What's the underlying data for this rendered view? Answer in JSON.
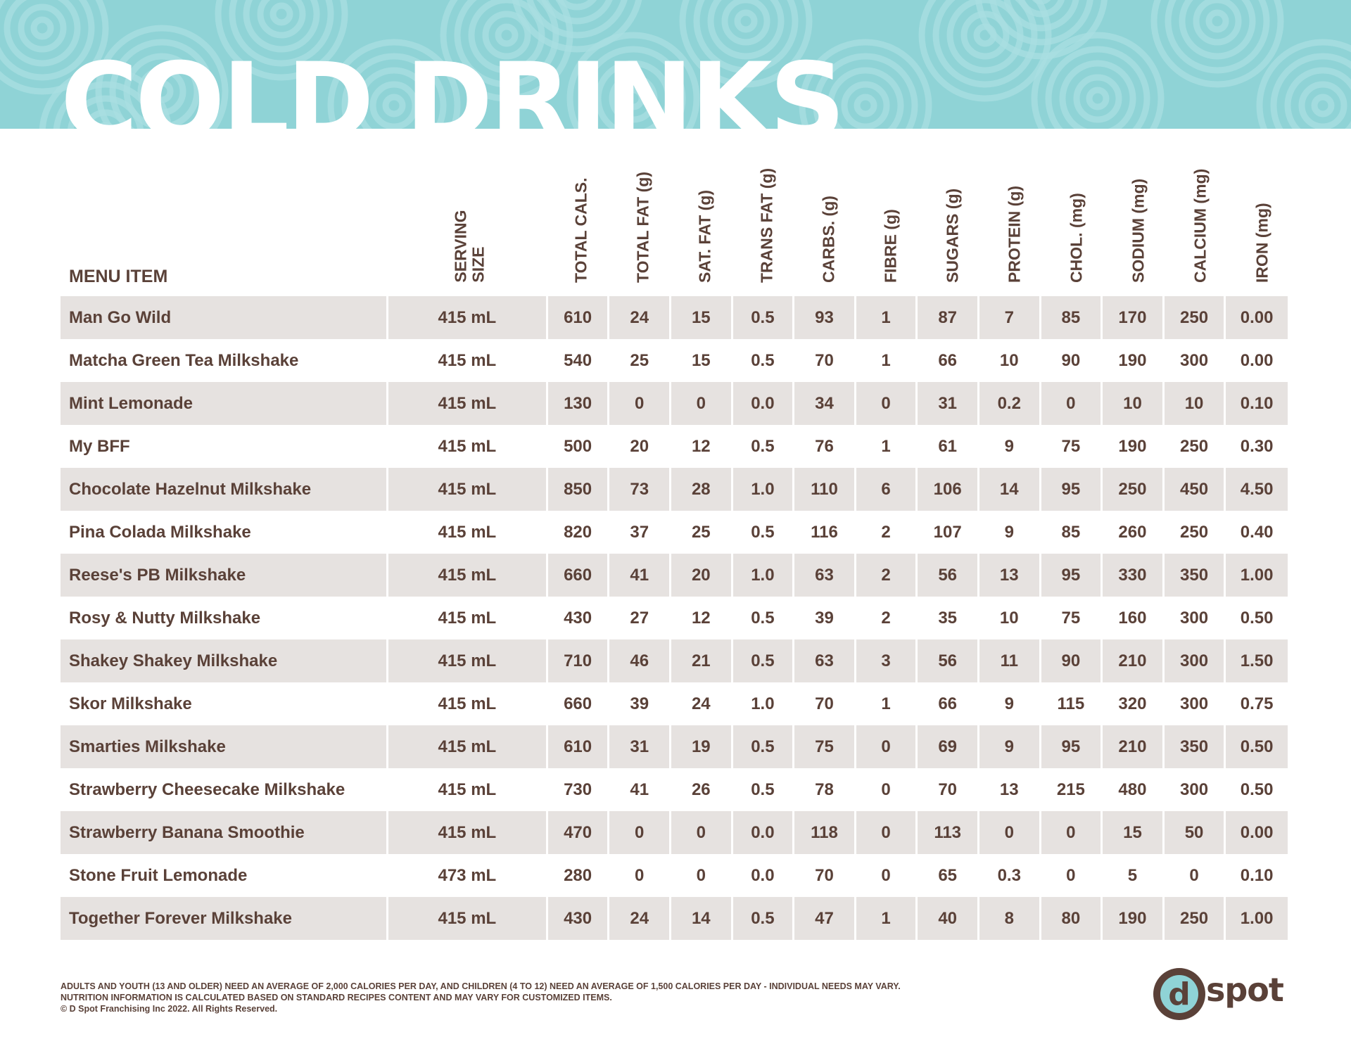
{
  "page": {
    "title": "COLD DRINKS"
  },
  "table": {
    "menu_header": "MENU ITEM",
    "headers": [
      "SERVING\nSIZE",
      "TOTAL CALS.",
      "TOTAL FAT (g)",
      "SAT. FAT (g)",
      "TRANS FAT (g)",
      "CARBS. (g)",
      "FIBRE (g)",
      "SUGARS (g)",
      "PROTEIN (g)",
      "CHOL. (mg)",
      "SODIUM (mg)",
      "CALCIUM (mg)",
      "IRON (mg)"
    ],
    "rows": [
      [
        "Man Go Wild",
        "415 mL",
        "610",
        "24",
        "15",
        "0.5",
        "93",
        "1",
        "87",
        "7",
        "85",
        "170",
        "250",
        "0.00"
      ],
      [
        "Matcha Green Tea Milkshake",
        "415 mL",
        "540",
        "25",
        "15",
        "0.5",
        "70",
        "1",
        "66",
        "10",
        "90",
        "190",
        "300",
        "0.00"
      ],
      [
        "Mint Lemonade",
        "415 mL",
        "130",
        "0",
        "0",
        "0.0",
        "34",
        "0",
        "31",
        "0.2",
        "0",
        "10",
        "10",
        "0.10"
      ],
      [
        "My BFF",
        "415 mL",
        "500",
        "20",
        "12",
        "0.5",
        "76",
        "1",
        "61",
        "9",
        "75",
        "190",
        "250",
        "0.30"
      ],
      [
        "Chocolate Hazelnut Milkshake",
        "415 mL",
        "850",
        "73",
        "28",
        "1.0",
        "110",
        "6",
        "106",
        "14",
        "95",
        "250",
        "450",
        "4.50"
      ],
      [
        "Pina Colada Milkshake",
        "415 mL",
        "820",
        "37",
        "25",
        "0.5",
        "116",
        "2",
        "107",
        "9",
        "85",
        "260",
        "250",
        "0.40"
      ],
      [
        "Reese's PB Milkshake",
        "415 mL",
        "660",
        "41",
        "20",
        "1.0",
        "63",
        "2",
        "56",
        "13",
        "95",
        "330",
        "350",
        "1.00"
      ],
      [
        "Rosy & Nutty Milkshake",
        "415 mL",
        "430",
        "27",
        "12",
        "0.5",
        "39",
        "2",
        "35",
        "10",
        "75",
        "160",
        "300",
        "0.50"
      ],
      [
        "Shakey Shakey Milkshake",
        "415 mL",
        "710",
        "46",
        "21",
        "0.5",
        "63",
        "3",
        "56",
        "11",
        "90",
        "210",
        "300",
        "1.50"
      ],
      [
        "Skor Milkshake",
        "415 mL",
        "660",
        "39",
        "24",
        "1.0",
        "70",
        "1",
        "66",
        "9",
        "115",
        "320",
        "300",
        "0.75"
      ],
      [
        "Smarties Milkshake",
        "415 mL",
        "610",
        "31",
        "19",
        "0.5",
        "75",
        "0",
        "69",
        "9",
        "95",
        "210",
        "350",
        "0.50"
      ],
      [
        "Strawberry Cheesecake Milkshake",
        "415 mL",
        "730",
        "41",
        "26",
        "0.5",
        "78",
        "0",
        "70",
        "13",
        "215",
        "480",
        "300",
        "0.50"
      ],
      [
        "Strawberry Banana Smoothie",
        "415 mL",
        "470",
        "0",
        "0",
        "0.0",
        "118",
        "0",
        "113",
        "0",
        "0",
        "15",
        "50",
        "0.00"
      ],
      [
        "Stone Fruit Lemonade",
        "473 mL",
        "280",
        "0",
        "0",
        "0.0",
        "70",
        "0",
        "65",
        "0.3",
        "0",
        "5",
        "0",
        "0.10"
      ],
      [
        "Together Forever Milkshake",
        "415 mL",
        "430",
        "24",
        "14",
        "0.5",
        "47",
        "1",
        "40",
        "8",
        "80",
        "190",
        "250",
        "1.00"
      ]
    ]
  },
  "footer": {
    "line1": "ADULTS AND YOUTH (13 AND OLDER) NEED AN AVERAGE OF 2,000 CALORIES PER DAY, AND CHILDREN (4 TO 12) NEED AN AVERAGE OF 1,500 CALORIES PER DAY - INDIVIDUAL NEEDS MAY VARY.",
    "line2": "NUTRITION INFORMATION IS CALCULATED BASED ON STANDARD RECIPES CONTENT AND MAY VARY FOR CUSTOMIZED ITEMS.",
    "line3": "© D Spot Franchising Inc 2022. All Rights Reserved."
  },
  "logo": {
    "letter": "d",
    "word": "spot"
  },
  "colors": {
    "banner": "#8fd3d6",
    "banner_pattern": "#a9dfe1",
    "text": "#5a4138",
    "row_shade": "#e6e2e0",
    "logo_ring": "#8fd3d6"
  }
}
